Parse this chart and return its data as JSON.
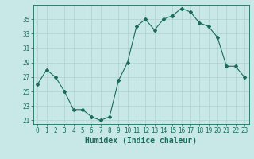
{
  "x": [
    0,
    1,
    2,
    3,
    4,
    5,
    6,
    7,
    8,
    9,
    10,
    11,
    12,
    13,
    14,
    15,
    16,
    17,
    18,
    19,
    20,
    21,
    22,
    23
  ],
  "y": [
    26,
    28,
    27,
    25,
    22.5,
    22.5,
    21.5,
    21,
    21.5,
    26.5,
    29,
    34,
    35,
    33.5,
    35,
    35.5,
    36.5,
    36,
    34.5,
    34,
    32.5,
    28.5,
    28.5,
    27
  ],
  "line_color": "#1a6b5a",
  "marker": "D",
  "marker_size": 2,
  "bg_color": "#c8e8e8",
  "grid_color": "#b0d0d0",
  "xlabel": "Humidex (Indice chaleur)",
  "xlim": [
    -0.5,
    23.5
  ],
  "ylim": [
    20.5,
    37.0
  ],
  "yticks": [
    21,
    23,
    25,
    27,
    29,
    31,
    33,
    35
  ],
  "xticks": [
    0,
    1,
    2,
    3,
    4,
    5,
    6,
    7,
    8,
    9,
    10,
    11,
    12,
    13,
    14,
    15,
    16,
    17,
    18,
    19,
    20,
    21,
    22,
    23
  ],
  "tick_color": "#1a6b5a",
  "label_color": "#1a6b5a",
  "font_size": 5.5,
  "xlabel_fontsize": 7
}
